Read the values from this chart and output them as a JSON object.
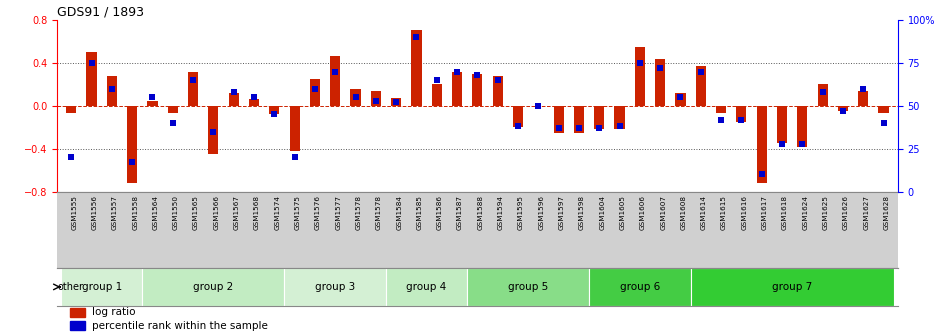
{
  "title": "GDS91 / 1893",
  "samples": [
    "GSM1555",
    "GSM1556",
    "GSM1557",
    "GSM1558",
    "GSM1564",
    "GSM1550",
    "GSM1565",
    "GSM1566",
    "GSM1567",
    "GSM1568",
    "GSM1574",
    "GSM1575",
    "GSM1576",
    "GSM1577",
    "GSM1578",
    "GSM1578",
    "GSM1584",
    "GSM1585",
    "GSM1586",
    "GSM1587",
    "GSM1588",
    "GSM1594",
    "GSM1595",
    "GSM1596",
    "GSM1597",
    "GSM1598",
    "GSM1604",
    "GSM1605",
    "GSM1606",
    "GSM1607",
    "GSM1608",
    "GSM1614",
    "GSM1615",
    "GSM1616",
    "GSM1617",
    "GSM1618",
    "GSM1624",
    "GSM1625",
    "GSM1626",
    "GSM1627",
    "GSM1628"
  ],
  "log_ratio": [
    -0.07,
    0.5,
    0.28,
    -0.72,
    0.05,
    -0.07,
    0.32,
    -0.45,
    0.12,
    0.06,
    -0.08,
    -0.42,
    0.25,
    0.47,
    0.16,
    0.14,
    0.07,
    0.71,
    0.2,
    0.32,
    0.3,
    0.28,
    -0.2,
    0.0,
    -0.25,
    -0.25,
    -0.22,
    -0.22,
    0.55,
    0.44,
    0.12,
    0.37,
    -0.07,
    -0.15,
    -0.72,
    -0.35,
    -0.38,
    0.2,
    -0.05,
    0.14,
    -0.07
  ],
  "percentile": [
    20,
    75,
    60,
    17,
    55,
    40,
    65,
    35,
    58,
    55,
    45,
    20,
    60,
    70,
    55,
    53,
    52,
    90,
    65,
    70,
    68,
    65,
    38,
    50,
    37,
    37,
    37,
    38,
    75,
    72,
    55,
    70,
    42,
    42,
    10,
    28,
    28,
    58,
    47,
    60,
    40
  ],
  "group_defs": [
    {
      "label": "group 1",
      "start": 0,
      "end": 4,
      "color": "#d4f0d4"
    },
    {
      "label": "group 2",
      "start": 4,
      "end": 11,
      "color": "#c2ecc2"
    },
    {
      "label": "group 3",
      "start": 11,
      "end": 16,
      "color": "#d4f0d4"
    },
    {
      "label": "group 4",
      "start": 16,
      "end": 20,
      "color": "#c2ecc2"
    },
    {
      "label": "group 5",
      "start": 20,
      "end": 26,
      "color": "#88dd88"
    },
    {
      "label": "group 6",
      "start": 26,
      "end": 31,
      "color": "#44cc44"
    },
    {
      "label": "group 7",
      "start": 31,
      "end": 41,
      "color": "#33cc33"
    }
  ],
  "ylim": [
    -0.8,
    0.8
  ],
  "yticks_left": [
    -0.8,
    -0.4,
    0.0,
    0.4,
    0.8
  ],
  "right_ytick_pcts": [
    0,
    25,
    50,
    75,
    100
  ],
  "right_yticklabels": [
    "0",
    "25",
    "50",
    "75",
    "100%"
  ],
  "bar_color": "#cc2200",
  "dot_color": "#0000cc",
  "hline_color": "#cc2200",
  "dotted_color": "#555555",
  "bar_width": 0.5,
  "dot_size": 18,
  "tick_bg_color": "#d0d0d0"
}
